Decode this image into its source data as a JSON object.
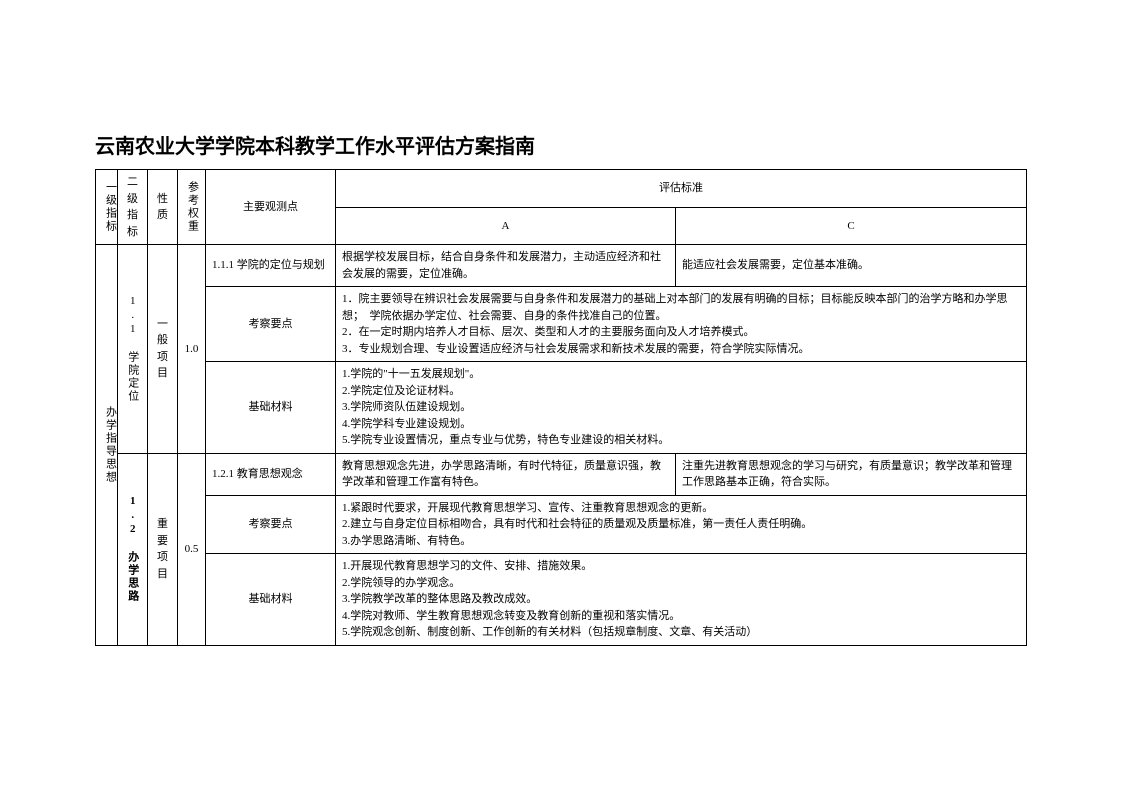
{
  "title": "云南农业大学学院本科教学工作水平评估方案指南",
  "header": {
    "l1": "一级指标",
    "l2": "二级指标",
    "nature": "性质",
    "weight": "参考权重",
    "obs": "主要观测点",
    "std": "评估标准",
    "a": "A",
    "c": "C"
  },
  "l1_1": "办学指导思想",
  "sec11": {
    "l2": "1.1 学院定位",
    "nature": "一般项目",
    "weight": "1.0",
    "r1_obs": "1.1.1 学院的定位与规划",
    "r1_a": "根据学校发展目标，结合自身条件和发展潜力，主动适应经济和社会发展的需要，定位准确。",
    "r1_c": "能适应社会发展需要，定位基本准确。",
    "r2_obs": "考察要点",
    "r2_txt": "1．院主要领导在辨识社会发展需要与自身条件和发展潜力的基础上对本部门的发展有明确的目标；目标能反映本部门的治学方略和办学思想；　学院依据办学定位、社会需要、自身的条件找准自己的位置。\n2．在一定时期内培养人才目标、层次、类型和人才的主要服务面向及人才培养模式。\n3．专业规划合理、专业设置适应经济与社会发展需求和新技术发展的需要，符合学院实际情况。",
    "r3_obs": "基础材料",
    "r3_txt": "1.学院的\"十一五发展规划\"。\n2.学院定位及论证材料。\n3.学院师资队伍建设规划。\n4.学院学科专业建设规划。\n5.学院专业设置情况，重点专业与优势，特色专业建设的相关材料。"
  },
  "sec12": {
    "l2": "1.2 办学思路",
    "nature": "重要项目",
    "weight": "0.5",
    "r1_obs": "1.2.1 教育思想观念",
    "r1_a": "教育思想观念先进，办学思路清晰，有时代特征，质量意识强，教学改革和管理工作富有特色。",
    "r1_c": "注重先进教育思想观念的学习与研究，有质量意识；教学改革和管理工作思路基本正确，符合实际。",
    "r2_obs": "考察要点",
    "r2_txt": "1.紧跟时代要求，开展现代教育思想学习、宣传、注重教育思想观念的更新。\n2.建立与自身定位目标相吻合，具有时代和社会特征的质量观及质量标准，第一责任人责任明确。\n3.办学思路清晰、有特色。",
    "r3_obs": "基础材料",
    "r3_txt": "1.开展现代教育思想学习的文件、安排、措施效果。\n2.学院领导的办学观念。\n3.学院教学改革的整体思路及教改成效。\n4.学院对教师、学生教育思想观念转变及教育创新的重视和落实情况。\n5.学院观念创新、制度创新、工作创新的有关材料（包括规章制度、文章、有关活动）"
  }
}
